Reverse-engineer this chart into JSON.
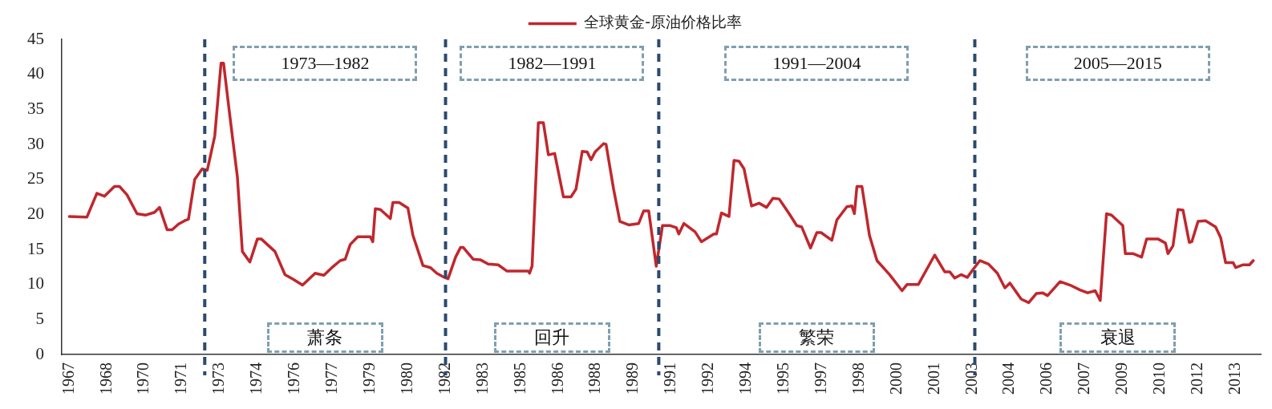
{
  "chart_data": {
    "type": "line",
    "legend": "top",
    "xlim": [
      1966.7,
      2014.5
    ],
    "ylim": [
      0,
      45
    ],
    "yticks": [
      0,
      5,
      10,
      15,
      20,
      25,
      30,
      35,
      40,
      45
    ],
    "xticks": [
      {
        "value": 1967,
        "label": "1967"
      },
      {
        "value": 1968.5,
        "label": "1968"
      },
      {
        "value": 1970,
        "label": "1970"
      },
      {
        "value": 1971.5,
        "label": "1971"
      },
      {
        "value": 1973,
        "label": "1973"
      },
      {
        "value": 1974.5,
        "label": "1974"
      },
      {
        "value": 1976,
        "label": "1976"
      },
      {
        "value": 1977.5,
        "label": "1977"
      },
      {
        "value": 1979,
        "label": "1979"
      },
      {
        "value": 1980.5,
        "label": "1980"
      },
      {
        "value": 1982,
        "label": "1982"
      },
      {
        "value": 1983.5,
        "label": "1983"
      },
      {
        "value": 1985,
        "label": "1985"
      },
      {
        "value": 1986.5,
        "label": "1986"
      },
      {
        "value": 1988,
        "label": "1988"
      },
      {
        "value": 1989.5,
        "label": "1989"
      },
      {
        "value": 1991,
        "label": "1991"
      },
      {
        "value": 1992.5,
        "label": "1992"
      },
      {
        "value": 1994,
        "label": "1994"
      },
      {
        "value": 1995.5,
        "label": "1995"
      },
      {
        "value": 1997,
        "label": "1997"
      },
      {
        "value": 1998.5,
        "label": "1998"
      },
      {
        "value": 2000,
        "label": "2000"
      },
      {
        "value": 2001.5,
        "label": "2001"
      },
      {
        "value": 2003,
        "label": "2003"
      },
      {
        "value": 2004.5,
        "label": "2004"
      },
      {
        "value": 2006,
        "label": "2006"
      },
      {
        "value": 2007.5,
        "label": "2007"
      },
      {
        "value": 2009,
        "label": "2009"
      },
      {
        "value": 2010.5,
        "label": "2010"
      },
      {
        "value": 2012,
        "label": "2012"
      },
      {
        "value": 2013.5,
        "label": "2013"
      }
    ],
    "ref_lines": [
      {
        "axis": "x",
        "value": 1972.4,
        "color": "#2c4a6e",
        "line_style": "dashed"
      },
      {
        "axis": "x",
        "value": 1982.0,
        "color": "#2c4a6e",
        "line_style": "dashed"
      },
      {
        "axis": "x",
        "value": 1990.5,
        "color": "#2c4a6e",
        "line_style": "dashed"
      },
      {
        "axis": "x",
        "value": 2003.1,
        "color": "#2c4a6e",
        "line_style": "dashed"
      }
    ],
    "annotations": [
      "1973—1982",
      "1982—1991",
      "1991—2004",
      "2005—2015",
      "萧条",
      "回升",
      "繁荣",
      "衰退"
    ],
    "series": [
      {
        "name": "全球黄金-原油价格比率",
        "color": "#c0272d",
        "x": [
          1967.0,
          1967.7,
          1968.1,
          1968.4,
          1968.8,
          1969.0,
          1969.3,
          1969.7,
          1970.05,
          1970.4,
          1970.6,
          1970.9,
          1971.1,
          1971.35,
          1971.6,
          1971.75,
          1972.0,
          1972.3,
          1972.5,
          1972.8,
          1973.05,
          1973.15,
          1973.4,
          1973.7,
          1973.9,
          1974.2,
          1974.5,
          1974.65,
          1975.2,
          1975.6,
          1975.9,
          1976.3,
          1976.8,
          1977.15,
          1977.5,
          1977.8,
          1978.0,
          1978.2,
          1978.5,
          1979.0,
          1979.1,
          1979.2,
          1979.4,
          1979.8,
          1979.9,
          1980.15,
          1980.5,
          1980.7,
          1981.1,
          1981.4,
          1981.65,
          1981.96,
          1982.1,
          1982.4,
          1982.6,
          1982.7,
          1983.1,
          1983.4,
          1983.7,
          1984.1,
          1984.45,
          1985.3,
          1985.35,
          1985.45,
          1985.7,
          1985.9,
          1986.1,
          1986.35,
          1986.7,
          1987.0,
          1987.2,
          1987.45,
          1987.65,
          1987.8,
          1987.96,
          1988.3,
          1988.4,
          1988.7,
          1988.95,
          1989.3,
          1989.7,
          1989.9,
          1990.1,
          1990.4,
          1990.65,
          1990.96,
          1991.2,
          1991.3,
          1991.5,
          1991.95,
          1992.2,
          1992.7,
          1992.8,
          1993.0,
          1993.3,
          1993.5,
          1993.7,
          1993.9,
          1994.2,
          1994.5,
          1994.8,
          1995.05,
          1995.3,
          1995.7,
          1996.0,
          1996.2,
          1996.55,
          1996.8,
          1996.97,
          1997.4,
          1997.6,
          1998.0,
          1998.2,
          1998.3,
          1998.4,
          1998.6,
          1998.9,
          1999.2,
          1999.7,
          2000.2,
          2000.4,
          2000.85,
          2001.5,
          2001.9,
          2002.1,
          2002.3,
          2002.55,
          2002.8,
          2003.0,
          2003.3,
          2003.65,
          2004.0,
          2004.3,
          2004.5,
          2004.95,
          2005.25,
          2005.55,
          2005.8,
          2006.0,
          2006.5,
          2006.9,
          2007.3,
          2007.6,
          2007.9,
          2008.1,
          2008.35,
          2008.55,
          2009.0,
          2009.1,
          2009.4,
          2009.75,
          2009.95,
          2010.4,
          2010.7,
          2010.8,
          2011.0,
          2011.2,
          2011.4,
          2011.65,
          2011.75,
          2012.0,
          2012.3,
          2012.7,
          2012.9,
          2013.1,
          2013.4,
          2013.5,
          2013.8,
          2014.05,
          2014.2
        ],
        "values": [
          19.7,
          19.6,
          23.0,
          22.6,
          24.0,
          24.0,
          22.8,
          20.1,
          19.9,
          20.3,
          21.0,
          17.8,
          17.8,
          18.6,
          19.1,
          19.3,
          25.0,
          26.5,
          26.3,
          31.2,
          41.6,
          41.6,
          34.1,
          25.4,
          14.7,
          13.2,
          16.5,
          16.5,
          14.7,
          11.4,
          10.8,
          9.9,
          11.6,
          11.3,
          12.5,
          13.4,
          13.6,
          15.7,
          16.8,
          16.8,
          16.1,
          20.8,
          20.7,
          19.4,
          21.7,
          21.7,
          20.9,
          17.0,
          12.7,
          12.4,
          11.6,
          11.0,
          10.8,
          13.9,
          15.3,
          15.3,
          13.6,
          13.5,
          12.9,
          12.8,
          11.9,
          11.9,
          11.6,
          12.6,
          33.1,
          33.1,
          28.5,
          28.7,
          22.5,
          22.5,
          23.6,
          29.0,
          28.9,
          27.8,
          28.9,
          30.1,
          30.0,
          23.6,
          19.0,
          18.5,
          18.7,
          20.5,
          20.5,
          12.6,
          18.4,
          18.4,
          18.1,
          17.2,
          18.7,
          17.5,
          16.1,
          17.2,
          17.2,
          20.2,
          19.7,
          27.7,
          27.6,
          26.5,
          21.2,
          21.6,
          21.0,
          22.3,
          22.2,
          20.1,
          18.4,
          18.2,
          15.2,
          17.4,
          17.4,
          16.3,
          19.2,
          21.1,
          21.2,
          20.1,
          24.0,
          24.0,
          17.0,
          13.4,
          11.4,
          9.1,
          10.0,
          10.0,
          14.2,
          11.8,
          11.8,
          10.9,
          11.4,
          11.0,
          12.0,
          13.4,
          12.9,
          11.6,
          9.5,
          10.2,
          7.9,
          7.4,
          8.7,
          8.8,
          8.4,
          10.4,
          9.9,
          9.2,
          8.8,
          9.1,
          7.7,
          20.1,
          19.9,
          18.4,
          14.4,
          14.4,
          13.9,
          16.5,
          16.5,
          15.9,
          14.4,
          15.5,
          20.7,
          20.6,
          16.0,
          16.1,
          19.0,
          19.1,
          18.2,
          16.7,
          13.1,
          13.1,
          12.4,
          12.8,
          12.8,
          13.4
        ]
      }
    ]
  }
}
